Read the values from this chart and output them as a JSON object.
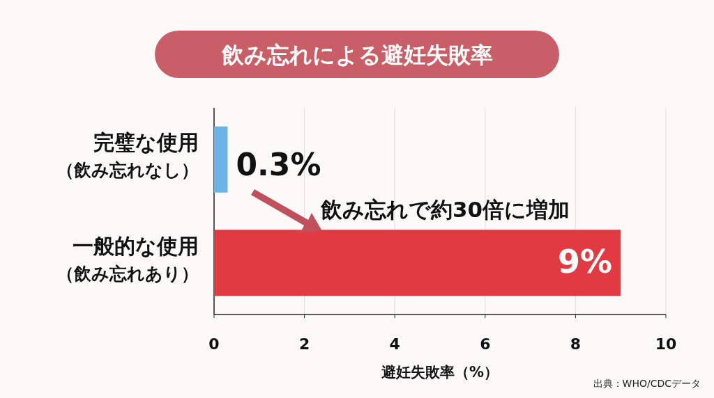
{
  "chart_data": {
    "type": "bar",
    "orientation": "horizontal",
    "title": "飲み忘れによる避妊失敗率",
    "categories": [
      "完璧な使用（飲み忘れなし）",
      "一般的な使用（飲み忘れあり）"
    ],
    "values": [
      0.3,
      9
    ],
    "colors": [
      "#6cb4e8",
      "#e23a42"
    ],
    "value_labels": [
      "0.3%",
      "9%"
    ],
    "xlim": [
      0,
      10
    ],
    "xticks": [
      0,
      2,
      4,
      6,
      8,
      10
    ],
    "xlabel": "避妊失敗率（%）",
    "grid": "x",
    "annotations": [
      "飲み忘れで約30倍に増加",
      "出典：WHO/CDCデータ"
    ]
  }
}
